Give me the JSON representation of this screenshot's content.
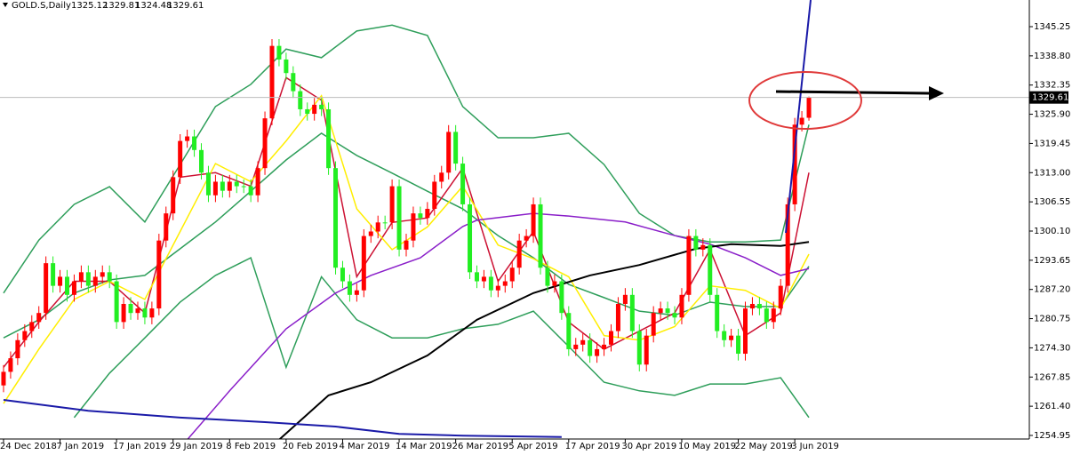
{
  "chart_data": {
    "type": "candlestick",
    "title": "GOLD.S,Daily",
    "up_color": "#ff0000",
    "down_color": "#22ee22",
    "xlim": [
      -0.5,
      145.2
    ],
    "xticks": [
      {
        "value": 0,
        "label": "24 Dec 2018"
      },
      {
        "value": 8,
        "label": "7 Jan 2019"
      },
      {
        "value": 16,
        "label": "17 Jan 2019"
      },
      {
        "value": 24,
        "label": "29 Jan 2019"
      },
      {
        "value": 32,
        "label": "8 Feb 2019"
      },
      {
        "value": 40,
        "label": "20 Feb 2019"
      },
      {
        "value": 48,
        "label": "4 Mar 2019"
      },
      {
        "value": 56,
        "label": "14 Mar 2019"
      },
      {
        "value": 64,
        "label": "26 Mar 2019"
      },
      {
        "value": 72,
        "label": "5 Apr 2019"
      },
      {
        "value": 80,
        "label": "17 Apr 2019"
      },
      {
        "value": 88,
        "label": "30 Apr 2019"
      },
      {
        "value": 96,
        "label": "10 May 2019"
      },
      {
        "value": 104,
        "label": "22 May 2019"
      },
      {
        "value": 112,
        "label": "3 Jun 2019"
      }
    ],
    "ylim": [
      1254.16,
      1351.14
    ],
    "yticks": [
      1345.25,
      {
        "value": 1338.8,
        "label": "1338.80"
      },
      1332.35,
      {
        "value": 1325.9,
        "label": "1325.90"
      },
      1319.45,
      {
        "value": 1313,
        "label": "1313.00"
      },
      1306.55,
      {
        "value": 1300.1,
        "label": "1300.10"
      },
      1293.65,
      {
        "value": 1287.2,
        "label": "1287.20"
      },
      1280.75,
      {
        "value": 1274.3,
        "label": "1274.30"
      },
      1267.85,
      {
        "value": 1261.4,
        "label": "1261.40"
      },
      1254.95
    ],
    "open": [
      1266,
      1269,
      1272,
      1276,
      1278,
      1280,
      1282,
      1293,
      1288,
      1290,
      1286,
      1289,
      1291,
      1288,
      1290,
      1291,
      1289,
      1280,
      1284,
      1282,
      1283,
      1281,
      1283,
      1298,
      1304,
      1312,
      1320,
      1321,
      1318,
      1313,
      1308,
      1311,
      1309,
      1311,
      1310,
      1310,
      1308,
      1314,
      1325,
      1341,
      1338,
      1335,
      1331,
      1327,
      1326,
      1328,
      1327,
      1314,
      1292,
      1289,
      1286,
      1287,
      1299,
      1300,
      1302,
      1302,
      1310,
      1296,
      1298,
      1304,
      1303,
      1305,
      1311,
      1313,
      1322,
      1315,
      1306,
      1291,
      1289,
      1290,
      1287,
      1288,
      1289,
      1292,
      1298,
      1299,
      1306,
      1292,
      1288,
      1289,
      1282,
      1274,
      1275,
      1276,
      1272.5,
      1274,
      1275,
      1278,
      1284,
      1286,
      1278,
      1270.6,
      1277,
      1282,
      1283,
      1282,
      1281,
      1286,
      1299,
      1296,
      1297,
      1286,
      1278,
      1276,
      1277,
      1273,
      1283,
      1284,
      1283,
      1280,
      1283,
      1288,
      1306,
      1323.6,
      1325.12
    ],
    "high": [
      1270.5,
      1273.5,
      1277.5,
      1279.5,
      1281.5,
      1283.5,
      1294.5,
      1294.5,
      1291.5,
      1291.5,
      1290.5,
      1292.5,
      1292.5,
      1291.5,
      1292.5,
      1292.5,
      1290.5,
      1285.5,
      1285.5,
      1284.5,
      1284.5,
      1284.5,
      1299.5,
      1305.5,
      1313.5,
      1321.5,
      1322.5,
      1322.5,
      1319.5,
      1314.5,
      1312.5,
      1312.5,
      1312.5,
      1312.5,
      1311.5,
      1311.5,
      1315.5,
      1326.5,
      1342.5,
      1342.5,
      1339.5,
      1336.5,
      1332.5,
      1328.5,
      1329.5,
      1329.5,
      1328.5,
      1315.5,
      1293.5,
      1290.5,
      1288.5,
      1300.5,
      1301.5,
      1303.5,
      1303.5,
      1311.5,
      1311.5,
      1299.5,
      1305.5,
      1305.5,
      1306.5,
      1312.5,
      1314.5,
      1323.5,
      1323.5,
      1316.5,
      1307.5,
      1292.5,
      1291.5,
      1291.5,
      1289.5,
      1290.5,
      1293.5,
      1299.5,
      1300.5,
      1307.5,
      1307.5,
      1293.5,
      1290.5,
      1290.5,
      1283.5,
      1276.5,
      1277.5,
      1277.5,
      1275.5,
      1276.5,
      1279.5,
      1285.5,
      1287.5,
      1287.5,
      1279.5,
      1278.5,
      1283.5,
      1284.5,
      1284.5,
      1283.5,
      1287.5,
      1300.5,
      1300.5,
      1298.5,
      1298.5,
      1287.5,
      1279.5,
      1278.5,
      1278.5,
      1284.5,
      1285.5,
      1285.5,
      1284.5,
      1284.5,
      1289.5,
      1307.5,
      1325.1,
      1326.6,
      1329.81
    ],
    "low": [
      1264.5,
      1267.5,
      1270.5,
      1274.5,
      1276.5,
      1278.5,
      1280.5,
      1286.5,
      1286.5,
      1284.5,
      1284.5,
      1287.5,
      1286.5,
      1286.5,
      1288.5,
      1287.5,
      1278.5,
      1278.5,
      1280.5,
      1280.5,
      1279.5,
      1279.5,
      1281.5,
      1296.5,
      1302.5,
      1310.5,
      1318.5,
      1316.5,
      1311.5,
      1306.5,
      1306.5,
      1307.5,
      1307.5,
      1308.5,
      1308.5,
      1306.5,
      1306.5,
      1312.5,
      1323.5,
      1336.5,
      1333.5,
      1329.5,
      1325.5,
      1324.5,
      1324.5,
      1325.5,
      1312.5,
      1290.5,
      1287.5,
      1284.5,
      1284.5,
      1285.5,
      1297.5,
      1298.5,
      1300.5,
      1300.5,
      1294.5,
      1294.5,
      1296.5,
      1301.5,
      1301.5,
      1303.5,
      1309.5,
      1311.5,
      1313.5,
      1304.5,
      1289.5,
      1287.5,
      1287.5,
      1285.5,
      1285.5,
      1286.5,
      1287.5,
      1290.5,
      1296.5,
      1297.5,
      1290.5,
      1286.5,
      1286.5,
      1280.5,
      1272.5,
      1272.5,
      1273.5,
      1271,
      1271,
      1272.5,
      1273.5,
      1276.5,
      1282.5,
      1276.5,
      1269.1,
      1269.1,
      1275.5,
      1280.5,
      1280.5,
      1279.5,
      1279.5,
      1284.5,
      1294.5,
      1294.5,
      1284.5,
      1276.5,
      1274.5,
      1274.5,
      1271.5,
      1271.5,
      1281.5,
      1281.5,
      1278.5,
      1278.5,
      1281.5,
      1286.5,
      1304.5,
      1322.1,
      1324.48
    ],
    "close": [
      1269,
      1272,
      1276,
      1278,
      1280,
      1282,
      1293,
      1288,
      1290,
      1286,
      1289,
      1291,
      1288,
      1290,
      1291,
      1289,
      1280,
      1284,
      1282,
      1283,
      1281,
      1283,
      1298,
      1304,
      1312,
      1320,
      1321,
      1318,
      1313,
      1308,
      1311,
      1309,
      1311,
      1310,
      1310,
      1308,
      1314,
      1325,
      1341,
      1338,
      1335,
      1331,
      1327,
      1326,
      1328,
      1327,
      1314,
      1292,
      1289,
      1286,
      1287,
      1299,
      1300,
      1302,
      1302,
      1310,
      1296,
      1298,
      1304,
      1303,
      1305,
      1311,
      1313,
      1322,
      1315,
      1306,
      1291,
      1289,
      1290,
      1287,
      1288,
      1289,
      1292,
      1298,
      1299,
      1306,
      1292,
      1288,
      1289,
      1282,
      1274,
      1275,
      1276,
      1272.5,
      1274,
      1275,
      1278,
      1284,
      1286,
      1278,
      1270.6,
      1277,
      1282,
      1283,
      1282,
      1281,
      1286,
      1299,
      1296,
      1297,
      1286,
      1278,
      1276,
      1277,
      1273,
      1283,
      1284,
      1283,
      1280,
      1283,
      1288,
      1306,
      1323.6,
      1325.12,
      1329.61
    ],
    "indicators": [
      {
        "color": "#2e9e5a",
        "x": [
          0,
          5,
          10,
          15,
          20,
          25,
          30,
          35,
          40,
          45,
          50,
          55,
          60,
          65,
          70,
          75,
          80,
          85,
          90,
          95,
          100,
          105,
          110,
          114
        ],
        "values": [
          1286.4,
          1298.1,
          1306,
          1309.9,
          1302.1,
          1314.8,
          1327.6,
          1332.5,
          1340.3,
          1338.4,
          1344.3,
          1345.6,
          1343.3,
          1327.6,
          1320.7,
          1320.7,
          1321.7,
          1314.8,
          1304,
          1299.1,
          1297.7,
          1297.7,
          1298.1,
          1323.6
        ]
      },
      {
        "color": "#2e9e5a",
        "x": [
          0,
          5,
          10,
          15,
          20,
          25,
          30,
          35,
          40,
          45,
          50,
          55,
          60,
          65,
          70,
          75,
          80,
          85,
          90,
          95,
          100,
          105,
          110,
          114
        ],
        "values": [
          1276.5,
          1280.5,
          1286.4,
          1289.3,
          1290.3,
          1296.2,
          1302.1,
          1308.9,
          1315.8,
          1321.7,
          1316.8,
          1312.9,
          1308.9,
          1305,
          1299.1,
          1294.2,
          1288.3,
          1285.4,
          1282.4,
          1281.5,
          1284.4,
          1283.4,
          1283.4,
          1292.3
        ]
      },
      {
        "color": "#2e9e5a",
        "x": [
          10,
          15,
          20,
          25,
          30,
          35,
          40,
          45,
          50,
          55,
          60,
          65,
          70,
          75,
          80,
          85,
          90,
          95,
          100,
          105,
          110,
          114
        ],
        "values": [
          1258.9,
          1268.7,
          1276.5,
          1284.4,
          1290.3,
          1294.2,
          1270,
          1290,
          1280.5,
          1276.5,
          1276.5,
          1278.5,
          1279.5,
          1282.4,
          1274.6,
          1266.7,
          1264.8,
          1263.8,
          1266.3,
          1266.3,
          1267.7,
          1258.9
        ]
      },
      {
        "color": "#cc1133",
        "x": [
          0,
          5,
          10,
          15,
          20,
          25,
          30,
          35,
          40,
          45,
          50,
          55,
          60,
          65,
          70,
          75,
          80,
          85,
          90,
          95,
          100,
          105,
          110,
          114
        ],
        "values": [
          1270,
          1280,
          1289,
          1289,
          1282,
          1312,
          1313,
          1310,
          1334,
          1329,
          1290,
          1302,
          1303,
          1314,
          1289,
          1300,
          1280,
          1274,
          1278,
          1282,
          1296,
          1277,
          1282,
          1313
        ]
      },
      {
        "color": "#ffee00",
        "x": [
          0,
          5,
          10,
          15,
          20,
          25,
          30,
          35,
          40,
          45,
          50,
          55,
          60,
          65,
          70,
          75,
          80,
          85,
          90,
          95,
          100,
          105,
          110,
          114
        ],
        "values": [
          1262,
          1274,
          1285,
          1289,
          1285,
          1300,
          1315,
          1311,
          1320,
          1330,
          1305,
          1296,
          1301,
          1310,
          1297,
          1294,
          1290,
          1277,
          1276,
          1279,
          1288,
          1287,
          1283,
          1295
        ]
      },
      {
        "color": "#8a1fc9",
        "x": [
          26,
          32,
          40,
          47,
          52,
          59,
          65,
          67,
          75,
          80,
          88,
          95,
          100,
          105,
          110,
          114
        ],
        "values": [
          1254,
          1264.8,
          1278.5,
          1286.4,
          1290.3,
          1294.2,
          1301.1,
          1302.5,
          1304,
          1303.4,
          1302.1,
          1299.1,
          1297.2,
          1294.2,
          1290.3,
          1291.8
        ]
      },
      {
        "color": "#000000",
        "x": [
          39,
          46,
          52,
          60,
          67,
          75,
          83,
          90,
          98,
          103,
          110,
          114
        ],
        "values": [
          1254,
          1263.8,
          1266.7,
          1272.6,
          1280.5,
          1286.4,
          1290.3,
          1292.6,
          1296.2,
          1297.2,
          1296.8,
          1297.7
        ]
      },
      {
        "color": "#1a1aa8",
        "x": [
          0,
          12,
          25,
          37,
          47,
          56,
          65,
          79
        ],
        "values": [
          1262.8,
          1260.4,
          1258.9,
          1257.9,
          1256.9,
          1255.3,
          1254.9,
          1254.6
        ]
      }
    ]
  }
}
